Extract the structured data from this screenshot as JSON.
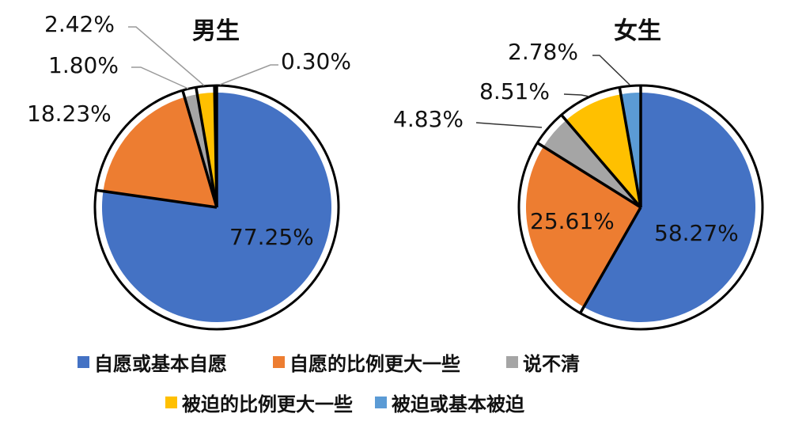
{
  "chart_data": [
    {
      "type": "pie",
      "title": "男生",
      "categories": [
        "自愿或基本自愿",
        "自愿的比例更大一些",
        "说不清",
        "被迫的比例更大一些",
        "被迫或基本被迫"
      ],
      "values": [
        77.25,
        18.23,
        1.8,
        2.42,
        0.3
      ],
      "labels": [
        "77.25%",
        "18.23%",
        "1.80%",
        "2.42%",
        "0.30%"
      ],
      "start_angle": "12 o'clock, clockwise"
    },
    {
      "type": "pie",
      "title": "女生",
      "categories": [
        "自愿或基本自愿",
        "自愿的比例更大一些",
        "说不清",
        "被迫的比例更大一些",
        "被迫或基本被迫"
      ],
      "values": [
        58.27,
        25.61,
        4.83,
        8.51,
        2.78
      ],
      "labels": [
        "58.27%",
        "25.61%",
        "4.83%",
        "8.51%",
        "2.78%"
      ],
      "start_angle": "12 o'clock, clockwise"
    }
  ],
  "colors": [
    "#4472C4",
    "#ED7D31",
    "#A5A5A5",
    "#FFC000",
    "#5B9BD5"
  ],
  "legend": [
    {
      "label": "自愿或基本自愿",
      "color": "#4472C4"
    },
    {
      "label": "自愿的比例更大一些",
      "color": "#ED7D31"
    },
    {
      "label": "说不清",
      "color": "#A5A5A5"
    },
    {
      "label": "被迫的比例更大一些",
      "color": "#FFC000"
    },
    {
      "label": "被迫或基本被迫",
      "color": "#5B9BD5"
    }
  ],
  "male": {
    "title": "男生",
    "l0": "77.25%",
    "l1": "18.23%",
    "l2": "1.80%",
    "l3": "2.42%",
    "l4": "0.30%"
  },
  "female": {
    "title": "女生",
    "l0": "58.27%",
    "l1": "25.61%",
    "l2": "4.83%",
    "l3": "8.51%",
    "l4": "2.78%"
  }
}
